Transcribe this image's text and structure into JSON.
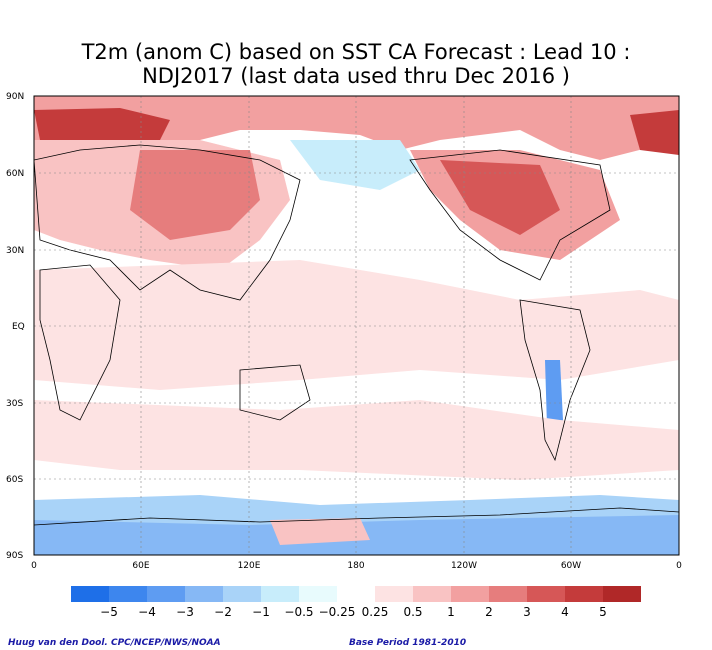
{
  "title": {
    "line1": "T2m (anom C) based on SST CA Forecast : Lead 10 :",
    "line2": "NDJ2017 (last data used thru Dec 2016 )"
  },
  "lat_labels": [
    "90N",
    "60N",
    "30N",
    "EQ",
    "30S",
    "60S",
    "90S"
  ],
  "lon_labels": [
    "0",
    "60E",
    "120E",
    "180",
    "120W",
    "60W",
    "0"
  ],
  "colorbar": {
    "labels": [
      "−5",
      "−4",
      "−3",
      "−2",
      "−1",
      "−0.5",
      "−0.25",
      "0.25",
      "0.5",
      "1",
      "2",
      "3",
      "4",
      "5"
    ],
    "colors": [
      "#1e6fe8",
      "#3d86ee",
      "#5e9cf2",
      "#86b8f5",
      "#a9d3f8",
      "#c8edfb",
      "#e8fbfd",
      "#ffffff",
      "#fde3e3",
      "#f9c3c3",
      "#f2a0a0",
      "#e67d7d",
      "#d65757",
      "#c43b3b",
      "#b02828"
    ]
  },
  "footer": {
    "credit": "Huug van den Dool. CPC/NCEP/NWS/NOAA",
    "base_period": "Base Period 1981-2010"
  }
}
